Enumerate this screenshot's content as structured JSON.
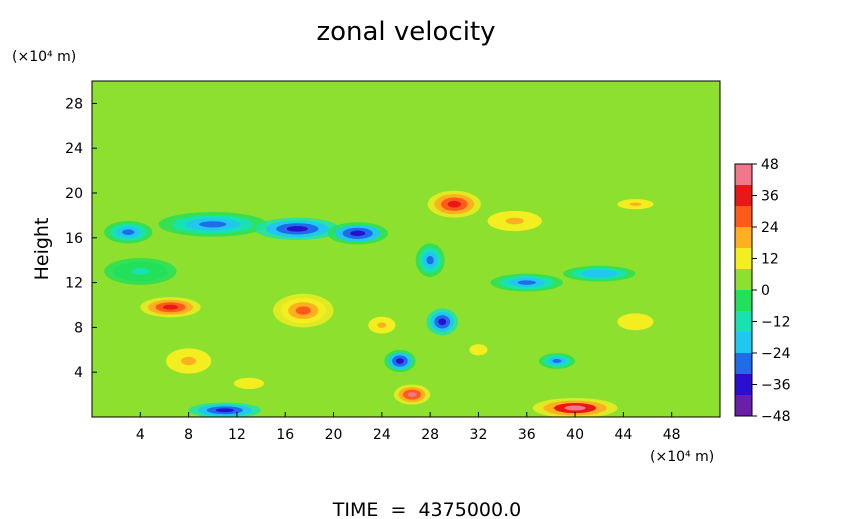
{
  "chart_data": {
    "type": "heatmap",
    "title": "zonal velocity",
    "ylabel": "Height",
    "y_unit_label": "(×10⁴ m)",
    "x_unit_label": "(×10⁴ m)",
    "footer": "TIME  =  4375000.0",
    "xlim": [
      0,
      52
    ],
    "ylim": [
      0,
      30
    ],
    "x_ticks": [
      4,
      8,
      12,
      16,
      20,
      24,
      28,
      32,
      36,
      40,
      44,
      48
    ],
    "y_ticks": [
      4,
      8,
      12,
      16,
      20,
      24,
      28
    ],
    "colorbar": {
      "range": [
        -48,
        48
      ],
      "ticks": [
        48,
        36,
        24,
        12,
        0,
        -12,
        -24,
        -36,
        -48
      ],
      "stops": [
        "#6a1fa8",
        "#2a0fd0",
        "#1f6be8",
        "#20c8f0",
        "#18e2b0",
        "#22e05a",
        "#8ee030",
        "#f2ee20",
        "#ffb020",
        "#ff5a1a",
        "#e81818",
        "#f07888"
      ]
    },
    "background_value": 2,
    "features": [
      {
        "x": 10,
        "y": 17.2,
        "sx": 4.5,
        "sy": 1.1,
        "value": -32
      },
      {
        "x": 17,
        "y": 16.8,
        "sx": 3.5,
        "sy": 1.0,
        "value": -40
      },
      {
        "x": 22,
        "y": 16.4,
        "sx": 2.5,
        "sy": 1.0,
        "value": -36
      },
      {
        "x": 3,
        "y": 16.5,
        "sx": 2.0,
        "sy": 1.0,
        "value": -30
      },
      {
        "x": 6.5,
        "y": 9.8,
        "sx": 2.5,
        "sy": 0.9,
        "value": 38
      },
      {
        "x": 17.5,
        "y": 9.5,
        "sx": 2.5,
        "sy": 1.5,
        "value": 26
      },
      {
        "x": 24,
        "y": 8.2,
        "sx": 1.5,
        "sy": 1.0,
        "value": 20
      },
      {
        "x": 30,
        "y": 19.0,
        "sx": 2.2,
        "sy": 1.2,
        "value": 36
      },
      {
        "x": 29,
        "y": 8.5,
        "sx": 1.3,
        "sy": 1.2,
        "value": -40
      },
      {
        "x": 25.5,
        "y": 5.0,
        "sx": 1.3,
        "sy": 1.0,
        "value": -38
      },
      {
        "x": 28,
        "y": 14.0,
        "sx": 1.2,
        "sy": 1.5,
        "value": -28
      },
      {
        "x": 36,
        "y": 12.0,
        "sx": 3.0,
        "sy": 0.8,
        "value": -30
      },
      {
        "x": 42,
        "y": 12.8,
        "sx": 3.0,
        "sy": 0.7,
        "value": -24
      },
      {
        "x": 26.5,
        "y": 2.0,
        "sx": 1.5,
        "sy": 0.9,
        "value": 40
      },
      {
        "x": 40,
        "y": 0.8,
        "sx": 3.5,
        "sy": 0.9,
        "value": 42
      },
      {
        "x": 11,
        "y": 0.6,
        "sx": 3.0,
        "sy": 0.7,
        "value": -40
      },
      {
        "x": 38.5,
        "y": 5.0,
        "sx": 1.5,
        "sy": 0.7,
        "value": -26
      },
      {
        "x": 8,
        "y": 5.0,
        "sx": 2.5,
        "sy": 1.5,
        "value": 18
      },
      {
        "x": 45,
        "y": 8.5,
        "sx": 3.0,
        "sy": 1.5,
        "value": 12
      },
      {
        "x": 35,
        "y": 17.5,
        "sx": 3.0,
        "sy": 1.2,
        "value": 16
      },
      {
        "x": 45,
        "y": 19.0,
        "sx": 2.0,
        "sy": 0.6,
        "value": 20
      },
      {
        "x": 13,
        "y": 3.0,
        "sx": 2.5,
        "sy": 1.0,
        "value": 12
      },
      {
        "x": 4,
        "y": 13.0,
        "sx": 3.0,
        "sy": 1.2,
        "value": -10
      },
      {
        "x": 32,
        "y": 6.0,
        "sx": 3.0,
        "sy": 2.0,
        "value": 8
      }
    ]
  }
}
